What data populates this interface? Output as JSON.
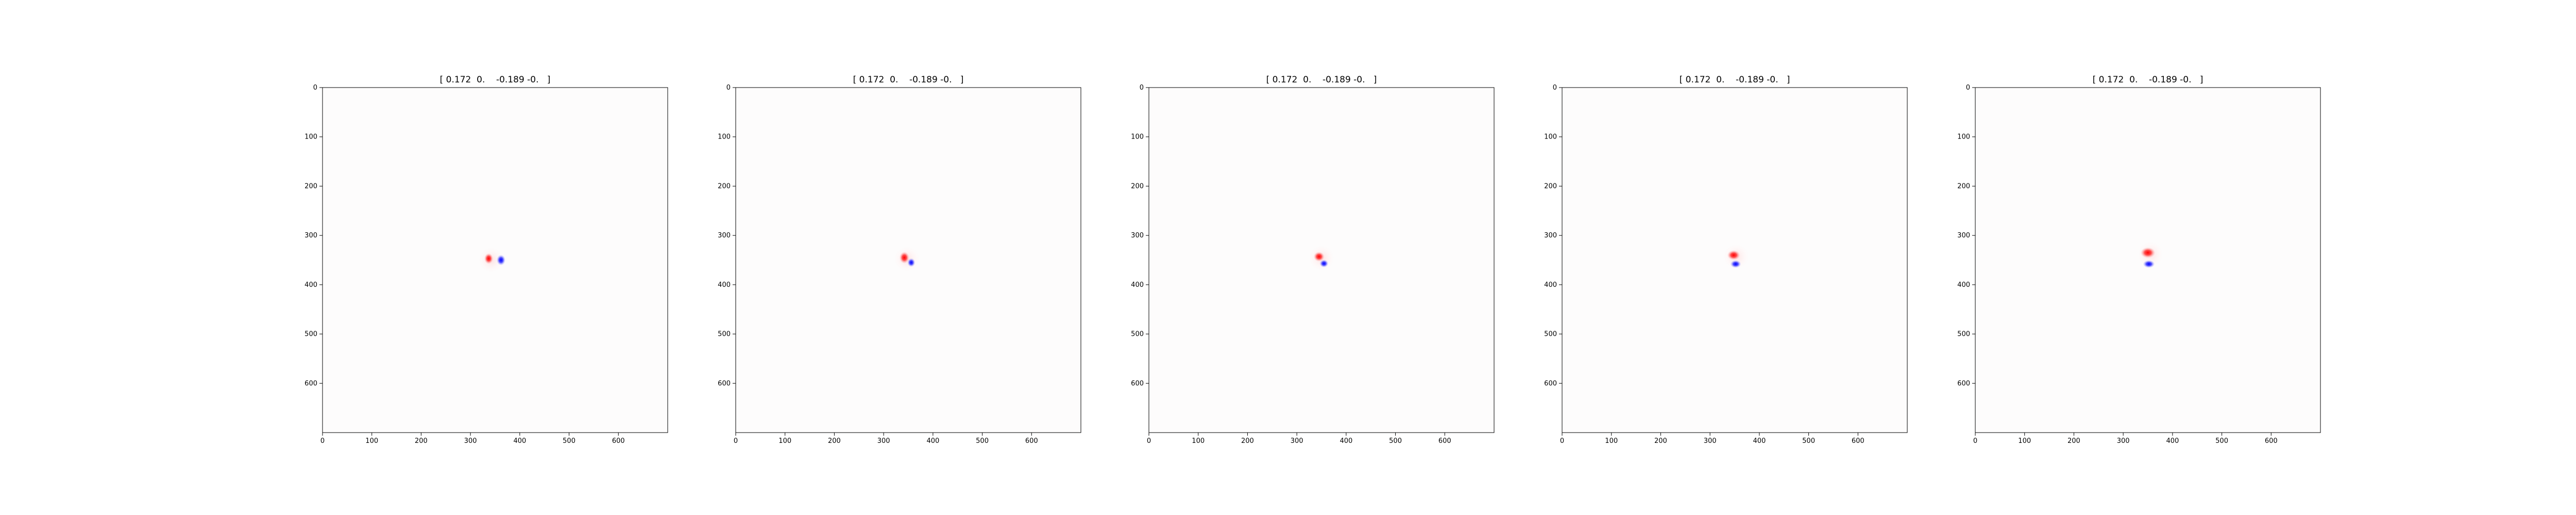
{
  "chart_data": [
    {
      "type": "heatmap",
      "title": "[ 0.172  0.    -0.189 -0.   ]",
      "xlim": [
        0,
        700
      ],
      "ylim": [
        700,
        0
      ],
      "x_ticks": [
        "0",
        "100",
        "200",
        "300",
        "400",
        "500",
        "600"
      ],
      "y_ticks": [
        "0",
        "100",
        "200",
        "300",
        "400",
        "500",
        "600"
      ],
      "colormap": "bwr",
      "blobs": [
        {
          "x": 337,
          "y": 347,
          "rx": 9,
          "ry": 11,
          "sign": "positive"
        },
        {
          "x": 362,
          "y": 350,
          "rx": 9,
          "ry": 11,
          "sign": "negative"
        }
      ]
    },
    {
      "type": "heatmap",
      "title": "[ 0.172  0.    -0.189 -0.   ]",
      "xlim": [
        0,
        700
      ],
      "ylim": [
        700,
        0
      ],
      "x_ticks": [
        "0",
        "100",
        "200",
        "300",
        "400",
        "500",
        "600"
      ],
      "y_ticks": [
        "0",
        "100",
        "200",
        "300",
        "400",
        "500",
        "600"
      ],
      "colormap": "bwr",
      "blobs": [
        {
          "x": 342,
          "y": 345,
          "rx": 10,
          "ry": 12,
          "sign": "positive"
        },
        {
          "x": 356,
          "y": 355,
          "rx": 8,
          "ry": 9,
          "sign": "negative"
        }
      ]
    },
    {
      "type": "heatmap",
      "title": "[ 0.172  0.    -0.189 -0.   ]",
      "xlim": [
        0,
        700
      ],
      "ylim": [
        700,
        0
      ],
      "x_ticks": [
        "0",
        "100",
        "200",
        "300",
        "400",
        "500",
        "600"
      ],
      "y_ticks": [
        "0",
        "100",
        "200",
        "300",
        "400",
        "500",
        "600"
      ],
      "colormap": "bwr",
      "blobs": [
        {
          "x": 345,
          "y": 343,
          "rx": 11,
          "ry": 10,
          "sign": "positive"
        },
        {
          "x": 355,
          "y": 357,
          "rx": 9,
          "ry": 8,
          "sign": "negative"
        }
      ]
    },
    {
      "type": "heatmap",
      "title": "[ 0.172  0.    -0.189 -0.   ]",
      "xlim": [
        0,
        700
      ],
      "ylim": [
        700,
        0
      ],
      "x_ticks": [
        "0",
        "100",
        "200",
        "300",
        "400",
        "500",
        "600"
      ],
      "y_ticks": [
        "0",
        "100",
        "200",
        "300",
        "400",
        "500",
        "600"
      ],
      "colormap": "bwr",
      "blobs": [
        {
          "x": 348,
          "y": 340,
          "rx": 13,
          "ry": 10,
          "sign": "positive"
        },
        {
          "x": 352,
          "y": 358,
          "rx": 11,
          "ry": 8,
          "sign": "negative"
        }
      ]
    },
    {
      "type": "heatmap",
      "title": "[ 0.172  0.    -0.189 -0.   ]",
      "xlim": [
        0,
        700
      ],
      "ylim": [
        700,
        0
      ],
      "x_ticks": [
        "0",
        "100",
        "200",
        "300",
        "400",
        "500",
        "600"
      ],
      "y_ticks": [
        "0",
        "100",
        "200",
        "300",
        "400",
        "500",
        "600"
      ],
      "colormap": "bwr",
      "blobs": [
        {
          "x": 350,
          "y": 335,
          "rx": 15,
          "ry": 11,
          "sign": "positive"
        },
        {
          "x": 352,
          "y": 358,
          "rx": 12,
          "ry": 8,
          "sign": "negative"
        }
      ]
    }
  ]
}
